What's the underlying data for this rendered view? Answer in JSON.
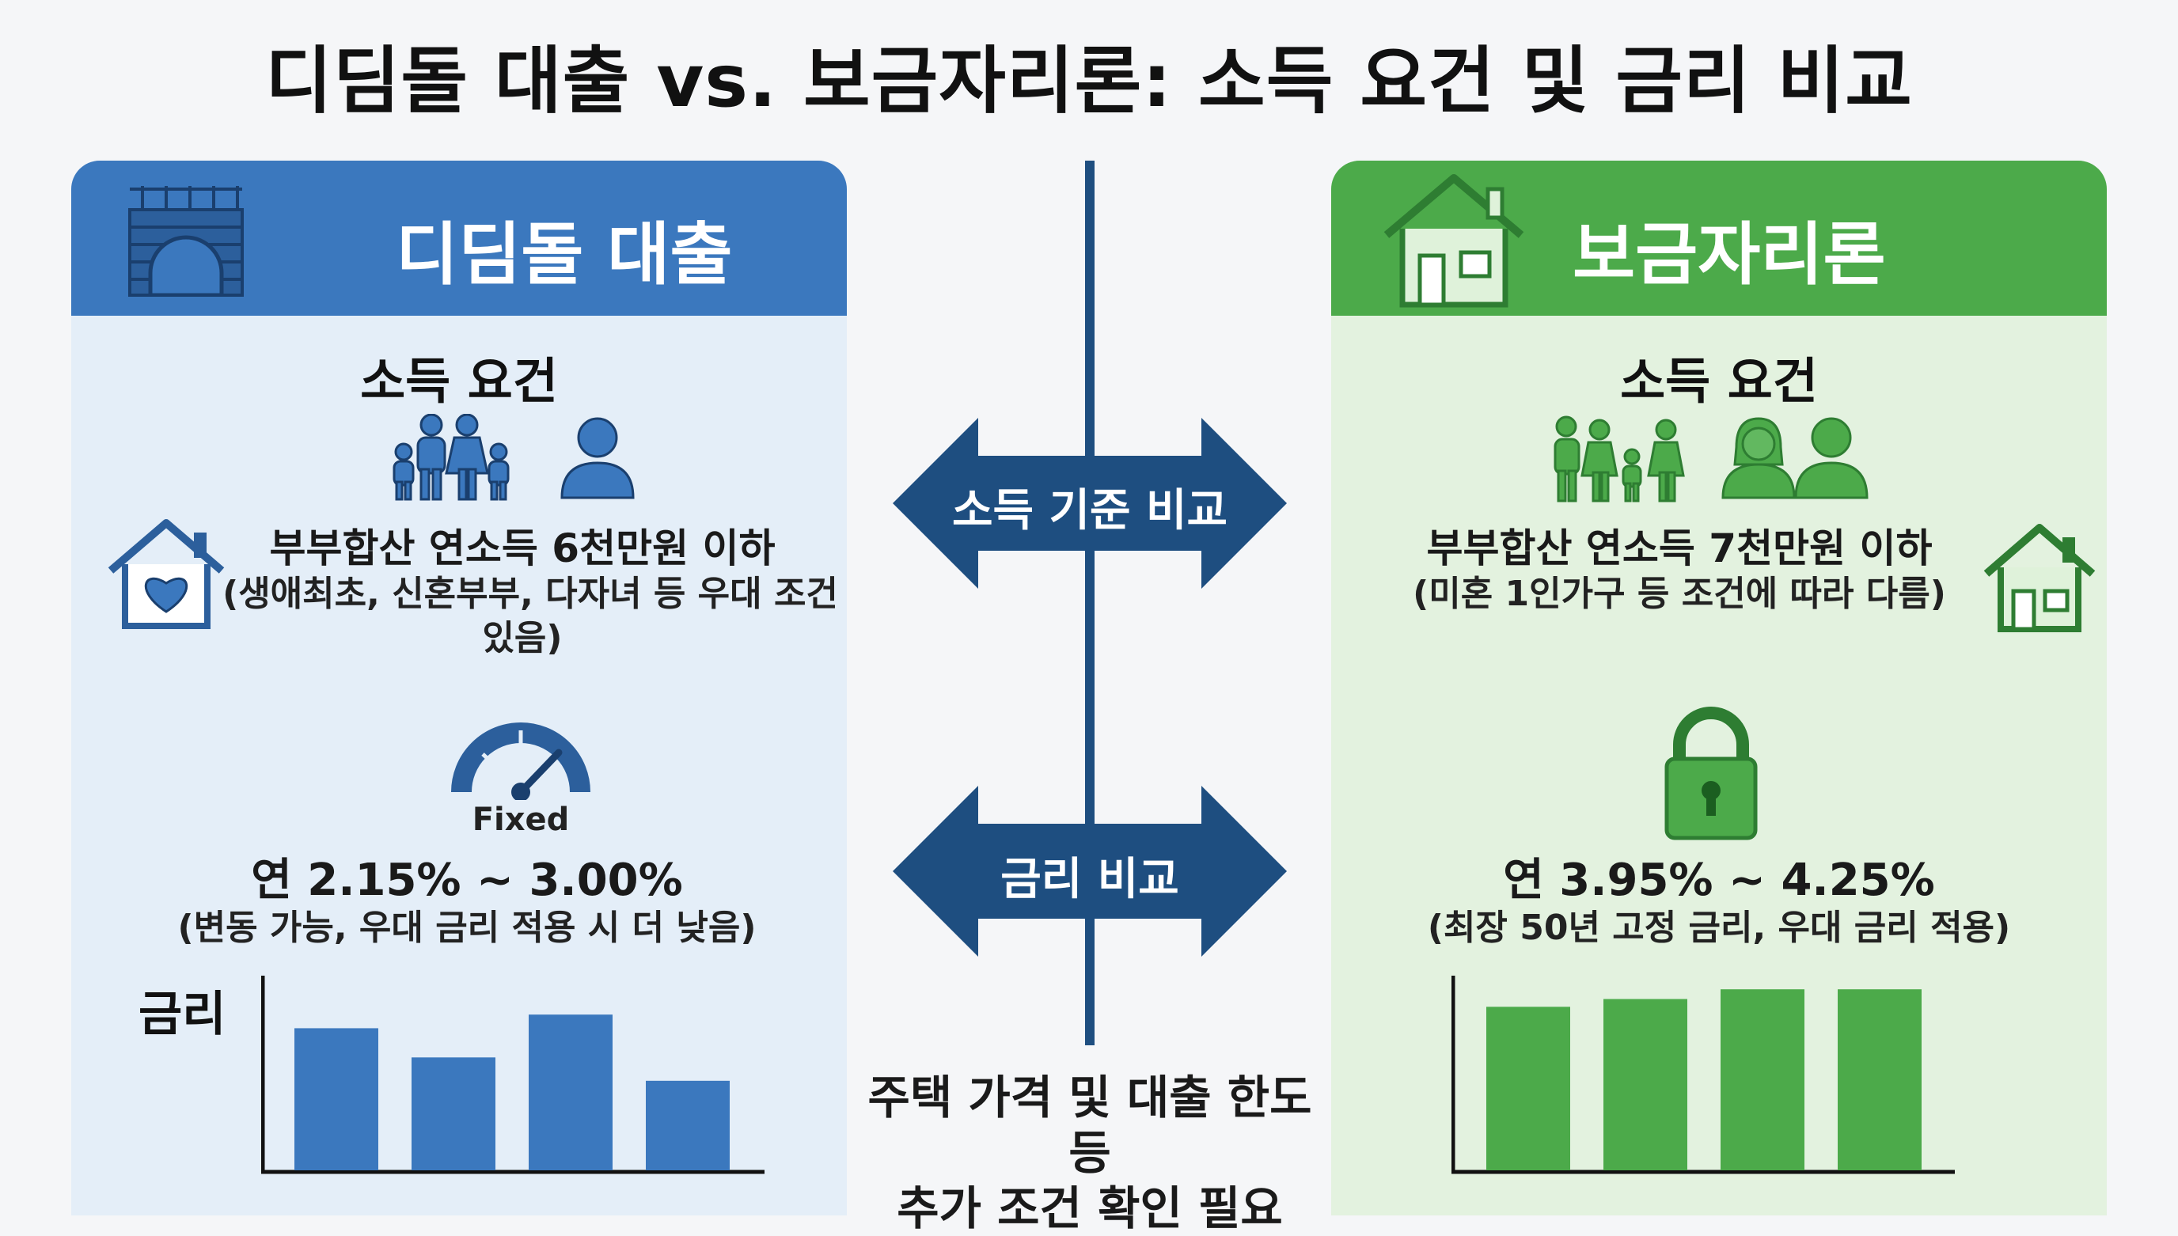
{
  "title": "디딤돌 대출 vs. 보금자리론: 소득 요건 및 금리 비교",
  "colors": {
    "blue": "#3b78be",
    "green": "#4caa4a",
    "navy": "#1e4e80"
  },
  "left": {
    "name": "디딤돌 대출",
    "icon": "bridge-icon",
    "income_title": "소득 요건",
    "income_main": "부부합산 연소득 6천만원 이하",
    "income_sub_1": "(생애최초, 신혼부부, 다자녀 등 우대 조건",
    "income_sub_2": "있음)",
    "gauge_label": "Fixed",
    "rate_label": "금리",
    "rate_main": "연 2.15% ~ 3.00%",
    "rate_sub": "(변동 가능, 우대 금리 적용 시 더 낮음)"
  },
  "right": {
    "name": "보금자리론",
    "icon": "house-icon",
    "income_title": "소득 요건",
    "income_main": "부부합산 연소득 7천만원 이하",
    "income_sub": "(미혼 1인가구 등 조건에 따라 다름)",
    "rate_main": "연 3.95% ~ 4.25%",
    "rate_sub": "(최장 50년 고정 금리, 우대 금리 적용)"
  },
  "middle": {
    "arrow_income": "소득 기준 비교",
    "arrow_rate": "금리 비교",
    "note_1": "주택 가격 및 대출 한도 등",
    "note_2": "추가 조건 확인 필요"
  },
  "chart_data": [
    {
      "type": "bar",
      "values": [
        0.73,
        0.58,
        0.8,
        0.46
      ],
      "ylim": [
        0,
        1
      ],
      "color": "#3b78be"
    },
    {
      "type": "bar",
      "values": [
        0.84,
        0.88,
        0.93,
        0.93
      ],
      "ylim": [
        0,
        1
      ],
      "color": "#4caa4a"
    }
  ]
}
